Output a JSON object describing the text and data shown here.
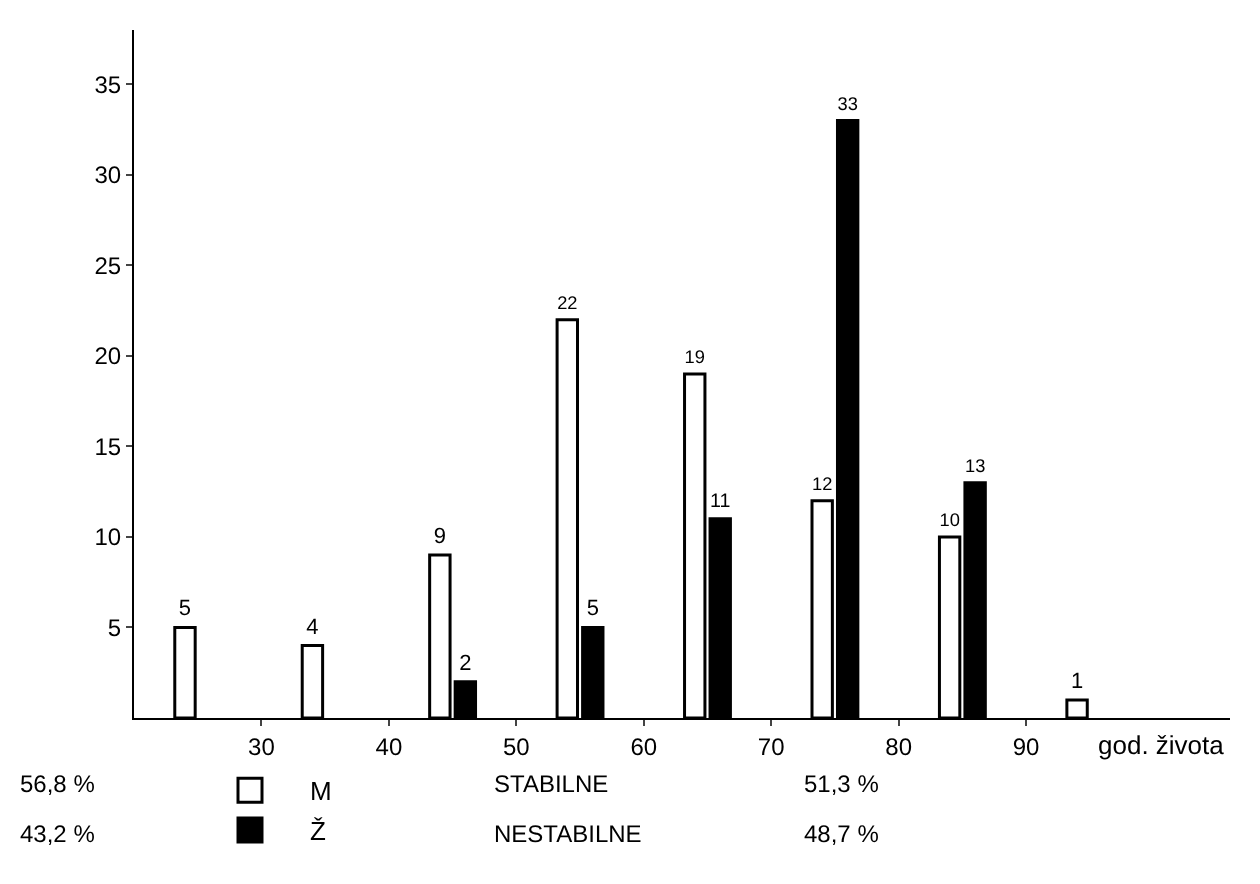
{
  "chart_data": {
    "type": "bar",
    "xlabel": "god. života",
    "series": [
      {
        "name": "M",
        "color": "#ffffff",
        "x": [
          24,
          34,
          44,
          54,
          64,
          74,
          84,
          94
        ],
        "values": [
          5,
          4,
          9,
          22,
          19,
          12,
          10,
          1
        ]
      },
      {
        "name": "Ž",
        "color": "#000000",
        "x": [
          46,
          56,
          66,
          76,
          86
        ],
        "values": [
          2,
          5,
          11,
          33,
          13
        ]
      }
    ],
    "xlim": [
      20,
      106
    ],
    "xticks": [
      30,
      40,
      50,
      60,
      70,
      80,
      90
    ],
    "ylim": [
      0,
      38
    ],
    "yticks": [
      5,
      10,
      15,
      20,
      25,
      30,
      35
    ],
    "data_labels": true,
    "grid": false,
    "legend": "bottom left",
    "annotations": [
      "56,8 %",
      "43,2 %",
      "STABILNE",
      "NESTABILNE",
      "51,3 %",
      "48,7 %"
    ]
  }
}
